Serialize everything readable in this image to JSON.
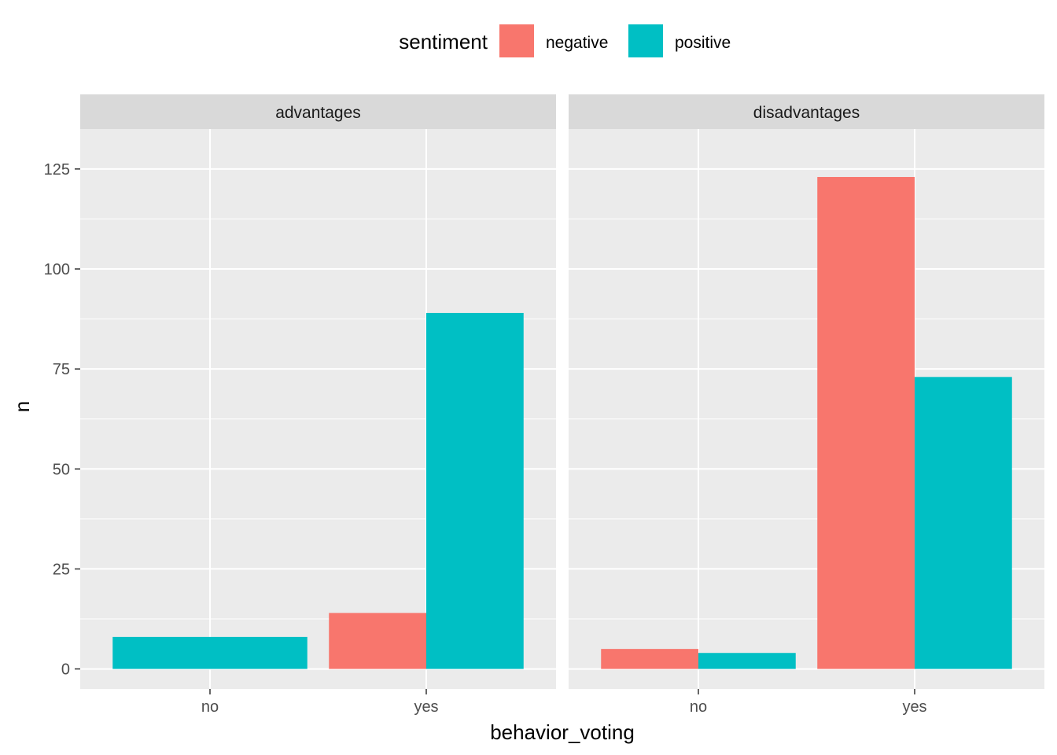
{
  "chart_data": {
    "type": "bar",
    "xlabel": "behavior_voting",
    "ylabel": "n",
    "ylim": [
      -5,
      135
    ],
    "yticks": [
      0,
      25,
      50,
      75,
      100,
      125
    ],
    "grid": true,
    "legend": {
      "title": "sentiment",
      "position": "top",
      "entries": [
        "negative",
        "positive"
      ]
    },
    "colors": {
      "negative": "#F8766D",
      "positive": "#00BFC4",
      "panel_bg": "#EBEBEB",
      "strip_bg": "#D9D9D9"
    },
    "categories": [
      "no",
      "yes"
    ],
    "facets": [
      {
        "name": "advantages",
        "bars": [
          {
            "category": "no",
            "series": "positive",
            "value": 8,
            "full_width": true
          },
          {
            "category": "yes",
            "series": "negative",
            "value": 14
          },
          {
            "category": "yes",
            "series": "positive",
            "value": 89
          }
        ]
      },
      {
        "name": "disadvantages",
        "bars": [
          {
            "category": "no",
            "series": "negative",
            "value": 5
          },
          {
            "category": "no",
            "series": "positive",
            "value": 4
          },
          {
            "category": "yes",
            "series": "negative",
            "value": 123
          },
          {
            "category": "yes",
            "series": "positive",
            "value": 73
          }
        ]
      }
    ]
  }
}
